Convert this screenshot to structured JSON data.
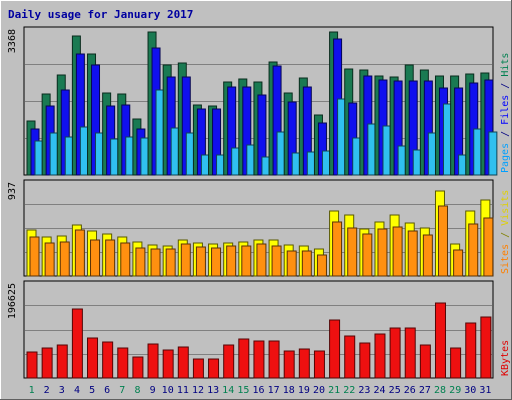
{
  "chart_data": [
    {
      "type": "bar",
      "title": "Daily usage for January 2017",
      "categories": [
        "1",
        "2",
        "3",
        "4",
        "5",
        "6",
        "7",
        "8",
        "9",
        "10",
        "11",
        "12",
        "13",
        "14",
        "15",
        "16",
        "17",
        "18",
        "19",
        "20",
        "21",
        "22",
        "23",
        "24",
        "25",
        "26",
        "27",
        "28",
        "29",
        "30",
        "31"
      ],
      "weekend_days": [
        "1",
        "7",
        "8",
        "14",
        "15",
        "21",
        "22",
        "28",
        "29"
      ],
      "ymax_label": "3368",
      "ylim": [
        0,
        3368
      ],
      "right_label": [
        {
          "text": "Pages",
          "color": "#00a0ff"
        },
        {
          "text": " / ",
          "color": "#000080"
        },
        {
          "text": "Files",
          "color": "#0000ff"
        },
        {
          "text": " / ",
          "color": "#000080"
        },
        {
          "text": "Hits",
          "color": "#008050"
        }
      ],
      "series": [
        {
          "name": "Hits",
          "color": "#1a7a52",
          "values": [
            1240,
            1880,
            2310,
            3200,
            2800,
            1900,
            1880,
            1290,
            3290,
            2540,
            2590,
            1610,
            1590,
            2150,
            2210,
            2140,
            2600,
            1900,
            2240,
            1390,
            3300,
            2440,
            2420,
            2280,
            2270,
            2540,
            2420,
            2290,
            2280,
            2340,
            2360
          ]
        },
        {
          "name": "Files",
          "color": "#1010ee",
          "values": [
            1070,
            1600,
            1950,
            2780,
            2540,
            1600,
            1620,
            1070,
            2940,
            2250,
            2260,
            1520,
            1520,
            2020,
            2020,
            1840,
            2510,
            1680,
            2020,
            1200,
            3130,
            1650,
            2280,
            2180,
            2160,
            2170,
            2160,
            2010,
            2000,
            2130,
            2190
          ]
        },
        {
          "name": "Pages",
          "color": "#30c0f0",
          "values": [
            780,
            960,
            870,
            1110,
            980,
            830,
            880,
            860,
            1970,
            1080,
            960,
            460,
            460,
            630,
            690,
            420,
            1000,
            510,
            540,
            560,
            1760,
            860,
            1170,
            1130,
            660,
            580,
            960,
            1630,
            470,
            1050,
            1000
          ]
        }
      ]
    },
    {
      "type": "bar",
      "ymax_label": "937",
      "ylim": [
        0,
        937
      ],
      "right_label": [
        {
          "text": "Sites",
          "color": "#ff8000"
        },
        {
          "text": " / ",
          "color": "#808000"
        },
        {
          "text": "Visits",
          "color": "#e0d000"
        }
      ],
      "series": [
        {
          "name": "Visits",
          "color": "#ffff00",
          "values": [
            460,
            390,
            400,
            510,
            450,
            420,
            390,
            340,
            310,
            300,
            360,
            330,
            320,
            330,
            340,
            360,
            360,
            310,
            300,
            270,
            650,
            610,
            470,
            540,
            610,
            530,
            480,
            850,
            320,
            650,
            760
          ]
        },
        {
          "name": "Sites",
          "color": "#ff9010",
          "values": [
            390,
            330,
            340,
            460,
            360,
            360,
            330,
            280,
            270,
            270,
            320,
            290,
            280,
            300,
            300,
            320,
            300,
            250,
            250,
            210,
            540,
            480,
            420,
            470,
            490,
            450,
            410,
            700,
            260,
            520,
            580
          ]
        }
      ]
    },
    {
      "type": "bar",
      "ymax_label": "196625",
      "ylim": [
        0,
        196625
      ],
      "right_label": [
        {
          "text": "KBytes",
          "color": "#e00000"
        }
      ],
      "series": [
        {
          "name": "KBytes",
          "color": "#ee1010",
          "values": [
            53000,
            63000,
            68000,
            143000,
            82000,
            75000,
            62000,
            43000,
            70000,
            58000,
            65000,
            39000,
            40000,
            68000,
            80000,
            77000,
            76000,
            56000,
            59000,
            55000,
            121000,
            87000,
            72000,
            92000,
            103000,
            104000,
            69000,
            156000,
            63000,
            113000,
            126000
          ]
        }
      ]
    }
  ]
}
